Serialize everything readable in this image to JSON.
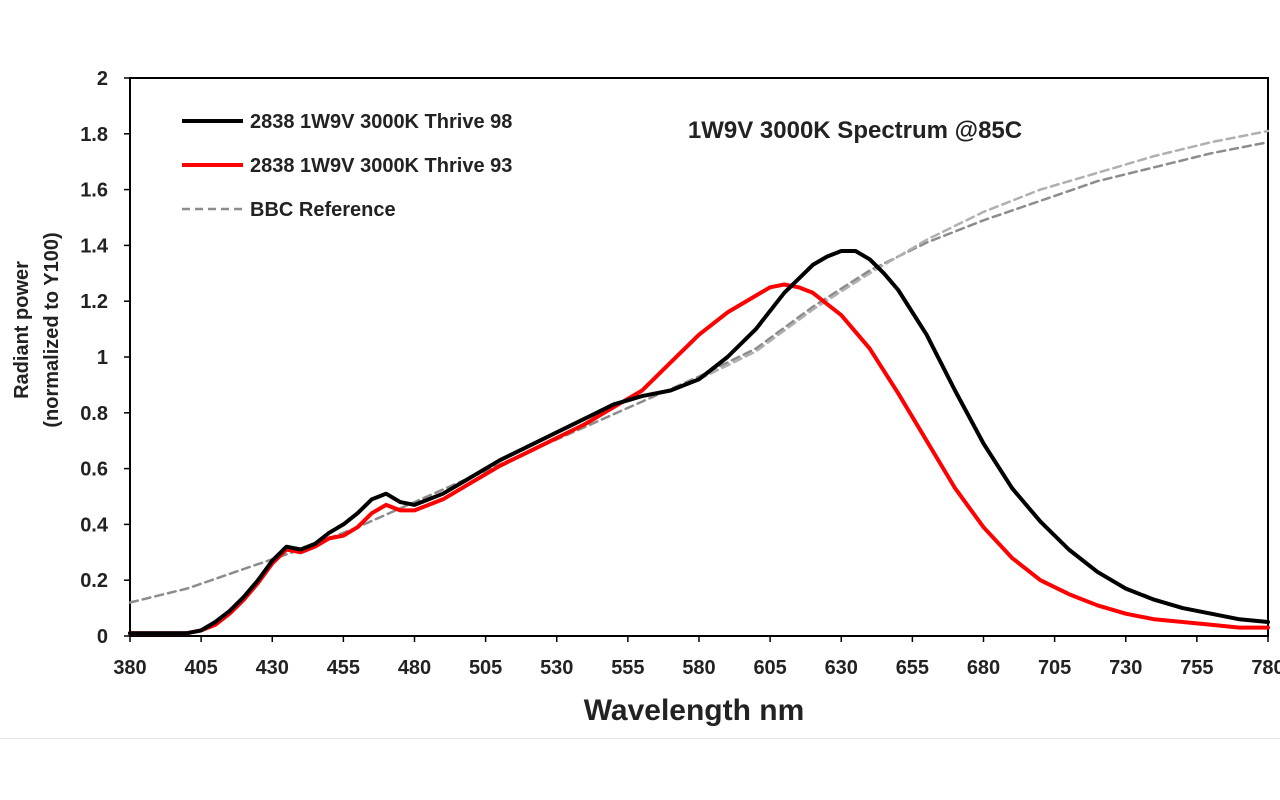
{
  "chart_data": {
    "type": "line",
    "title": "1W9V 3000K Spectrum @85C",
    "xlabel": "Wavelength nm",
    "ylabel": [
      "Radiant power",
      "(normalized to Y100)"
    ],
    "xlim": [
      380,
      780
    ],
    "ylim": [
      0,
      2
    ],
    "xticks": [
      "380",
      "405",
      "430",
      "455",
      "480",
      "505",
      "530",
      "555",
      "580",
      "605",
      "630",
      "655",
      "680",
      "705",
      "730",
      "755",
      "780"
    ],
    "yticks": [
      "0",
      "0.2",
      "0.4",
      "0.6",
      "0.8",
      "1",
      "1.2",
      "1.4",
      "1.6",
      "1.8",
      "2"
    ],
    "grid": false,
    "legend_position": "top-left",
    "series": [
      {
        "name": "2838 1W9V 3000K Thrive 98",
        "color": "#000000",
        "style": "solid",
        "x": [
          380,
          385,
          390,
          395,
          400,
          405,
          410,
          415,
          420,
          425,
          430,
          435,
          440,
          445,
          450,
          455,
          460,
          465,
          470,
          475,
          480,
          490,
          500,
          510,
          520,
          530,
          540,
          550,
          560,
          570,
          580,
          590,
          600,
          610,
          620,
          625,
          630,
          635,
          640,
          645,
          650,
          660,
          670,
          680,
          690,
          700,
          710,
          720,
          730,
          740,
          750,
          760,
          770,
          780
        ],
        "y": [
          0.01,
          0.01,
          0.01,
          0.01,
          0.01,
          0.02,
          0.05,
          0.09,
          0.14,
          0.2,
          0.27,
          0.32,
          0.31,
          0.33,
          0.37,
          0.4,
          0.44,
          0.49,
          0.51,
          0.48,
          0.47,
          0.51,
          0.57,
          0.63,
          0.68,
          0.73,
          0.78,
          0.83,
          0.86,
          0.88,
          0.92,
          1.0,
          1.1,
          1.23,
          1.33,
          1.36,
          1.38,
          1.38,
          1.35,
          1.3,
          1.24,
          1.08,
          0.88,
          0.69,
          0.53,
          0.41,
          0.31,
          0.23,
          0.17,
          0.13,
          0.1,
          0.08,
          0.06,
          0.05
        ]
      },
      {
        "name": "2838 1W9V 3000K Thrive 93",
        "color": "#ff0000",
        "style": "solid",
        "x": [
          380,
          385,
          390,
          395,
          400,
          405,
          410,
          415,
          420,
          425,
          430,
          435,
          440,
          445,
          450,
          455,
          460,
          465,
          470,
          475,
          480,
          490,
          500,
          510,
          520,
          530,
          540,
          550,
          560,
          570,
          580,
          590,
          600,
          605,
          610,
          615,
          620,
          630,
          640,
          650,
          660,
          670,
          680,
          690,
          700,
          710,
          720,
          730,
          740,
          750,
          760,
          770,
          780
        ],
        "y": [
          0.01,
          0.01,
          0.01,
          0.01,
          0.01,
          0.02,
          0.04,
          0.08,
          0.13,
          0.19,
          0.26,
          0.31,
          0.3,
          0.32,
          0.35,
          0.36,
          0.39,
          0.44,
          0.47,
          0.45,
          0.45,
          0.49,
          0.55,
          0.61,
          0.66,
          0.71,
          0.76,
          0.82,
          0.88,
          0.98,
          1.08,
          1.16,
          1.22,
          1.25,
          1.26,
          1.25,
          1.23,
          1.15,
          1.03,
          0.87,
          0.7,
          0.53,
          0.39,
          0.28,
          0.2,
          0.15,
          0.11,
          0.08,
          0.06,
          0.05,
          0.04,
          0.03,
          0.03
        ]
      },
      {
        "name": "BBC Reference",
        "color": "#8c8c8c",
        "style": "dashed",
        "x": [
          380,
          400,
          420,
          440,
          460,
          480,
          500,
          520,
          540,
          560,
          580,
          600,
          620,
          640,
          660,
          680,
          700,
          720,
          740,
          760,
          780
        ],
        "y": [
          0.12,
          0.17,
          0.24,
          0.31,
          0.39,
          0.48,
          0.57,
          0.66,
          0.75,
          0.84,
          0.93,
          1.03,
          1.18,
          1.31,
          1.41,
          1.49,
          1.56,
          1.63,
          1.68,
          1.73,
          1.77
        ]
      },
      {
        "name": "",
        "color": "#b0b0b0",
        "style": "dashed",
        "x": [
          580,
          600,
          620,
          640,
          660,
          680,
          700,
          720,
          740,
          760,
          780
        ],
        "y": [
          0.92,
          1.02,
          1.17,
          1.3,
          1.42,
          1.52,
          1.6,
          1.66,
          1.72,
          1.77,
          1.81
        ]
      }
    ]
  }
}
